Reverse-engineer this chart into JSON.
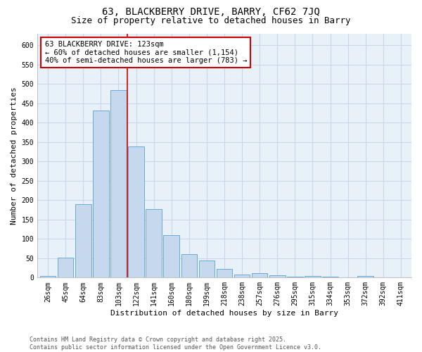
{
  "title1": "63, BLACKBERRY DRIVE, BARRY, CF62 7JQ",
  "title2": "Size of property relative to detached houses in Barry",
  "xlabel": "Distribution of detached houses by size in Barry",
  "ylabel": "Number of detached properties",
  "categories": [
    "26sqm",
    "45sqm",
    "64sqm",
    "83sqm",
    "103sqm",
    "122sqm",
    "141sqm",
    "160sqm",
    "180sqm",
    "199sqm",
    "218sqm",
    "238sqm",
    "257sqm",
    "276sqm",
    "295sqm",
    "315sqm",
    "334sqm",
    "353sqm",
    "372sqm",
    "392sqm",
    "411sqm"
  ],
  "values": [
    4,
    52,
    190,
    432,
    483,
    338,
    177,
    110,
    60,
    45,
    22,
    7,
    11,
    6,
    2,
    5,
    2,
    1,
    4,
    1,
    1
  ],
  "bar_color": "#c5d8ee",
  "bar_edge_color": "#6aaad4",
  "grid_color": "#c8d8e8",
  "bg_color": "#e8f0f8",
  "annotation_text": "63 BLACKBERRY DRIVE: 123sqm\n← 60% of detached houses are smaller (1,154)\n40% of semi-detached houses are larger (783) →",
  "annotation_box_color": "#ffffff",
  "annotation_box_edge_color": "#cc0000",
  "vline_x_idx": 4.5,
  "vline_color": "#cc0000",
  "ylim": [
    0,
    630
  ],
  "yticks": [
    0,
    50,
    100,
    150,
    200,
    250,
    300,
    350,
    400,
    450,
    500,
    550,
    600
  ],
  "footer": "Contains HM Land Registry data © Crown copyright and database right 2025.\nContains public sector information licensed under the Open Government Licence v3.0.",
  "title_fontsize": 10,
  "subtitle_fontsize": 9,
  "tick_fontsize": 7,
  "ylabel_fontsize": 8,
  "xlabel_fontsize": 8,
  "footer_fontsize": 6,
  "annot_fontsize": 7.5
}
